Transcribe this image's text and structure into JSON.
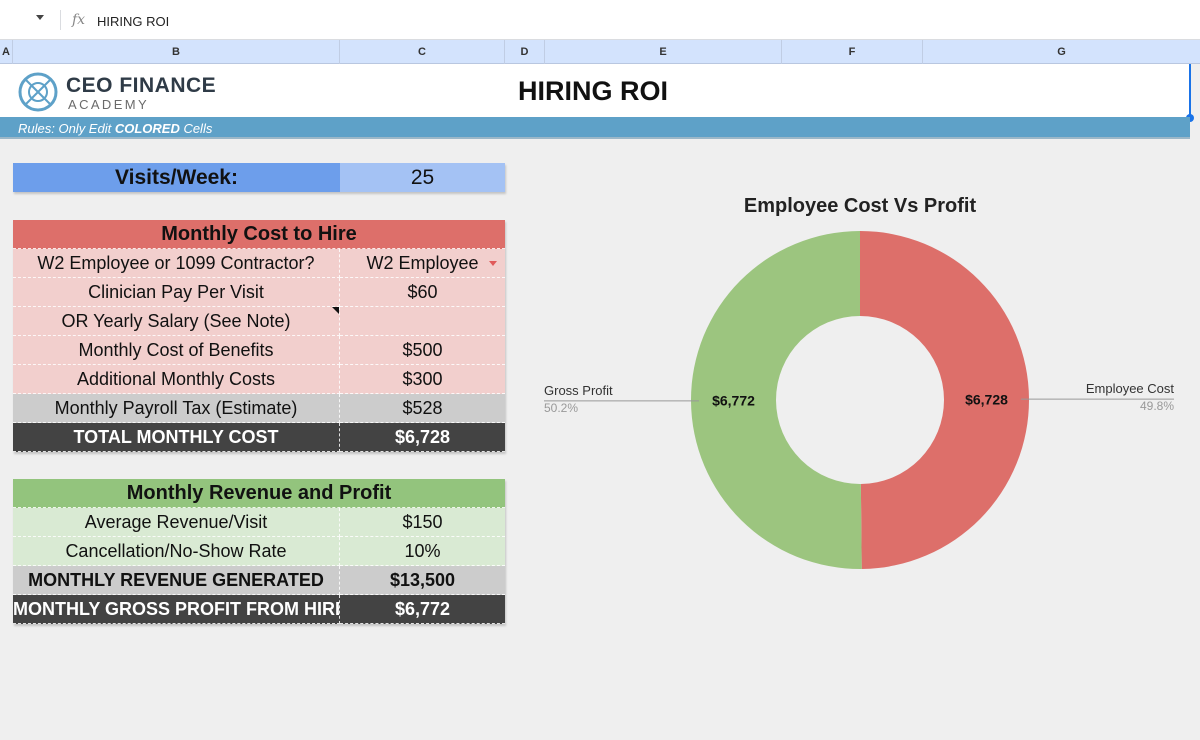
{
  "formula_bar": {
    "content": "HIRING ROI"
  },
  "columns": [
    "A",
    "B",
    "C",
    "D",
    "E",
    "F",
    "G"
  ],
  "banner": {
    "logo_title": "CEO FINANCE",
    "logo_subtitle": "ACADEMY",
    "page_title": "HIRING ROI",
    "rules_prefix": "Rules: Only Edit ",
    "rules_emphasis": "COLORED",
    "rules_suffix": " Cells"
  },
  "visits": {
    "label": "Visits/Week:",
    "value": "25"
  },
  "cost_table": {
    "header": "Monthly Cost to Hire",
    "rows": [
      {
        "label": "W2 Employee or 1099 Contractor?",
        "value": "W2 Employee"
      },
      {
        "label": "Clinician Pay Per Visit",
        "value": "$60"
      },
      {
        "label": "OR Yearly Salary (See Note)",
        "value": ""
      },
      {
        "label": "Monthly Cost of Benefits",
        "value": "$500"
      },
      {
        "label": "Additional Monthly Costs",
        "value": "$300"
      },
      {
        "label": "Monthly Payroll Tax (Estimate)",
        "value": "$528"
      }
    ],
    "total": {
      "label": "TOTAL MONTHLY COST",
      "value": "$6,728"
    }
  },
  "revenue_table": {
    "header": "Monthly Revenue and Profit",
    "rows": [
      {
        "label": "Average Revenue/Visit",
        "value": "$150"
      },
      {
        "label": "Cancellation/No-Show Rate",
        "value": "10%"
      }
    ],
    "revenue": {
      "label": "MONTHLY REVENUE GENERATED",
      "value": "$13,500"
    },
    "profit": {
      "label": "MONTHLY GROSS PROFIT FROM HIRE",
      "value": "$6,772"
    }
  },
  "chart_data": {
    "type": "pie",
    "title": "Employee Cost Vs Profit",
    "donut": true,
    "slices": [
      {
        "name": "Employee Cost",
        "value": 6728,
        "label": "$6,728",
        "percent": "49.8%",
        "color": "#dd6f6a"
      },
      {
        "name": "Gross Profit",
        "value": 6772,
        "label": "$6,772",
        "percent": "50.2%",
        "color": "#9cc57f"
      }
    ]
  }
}
